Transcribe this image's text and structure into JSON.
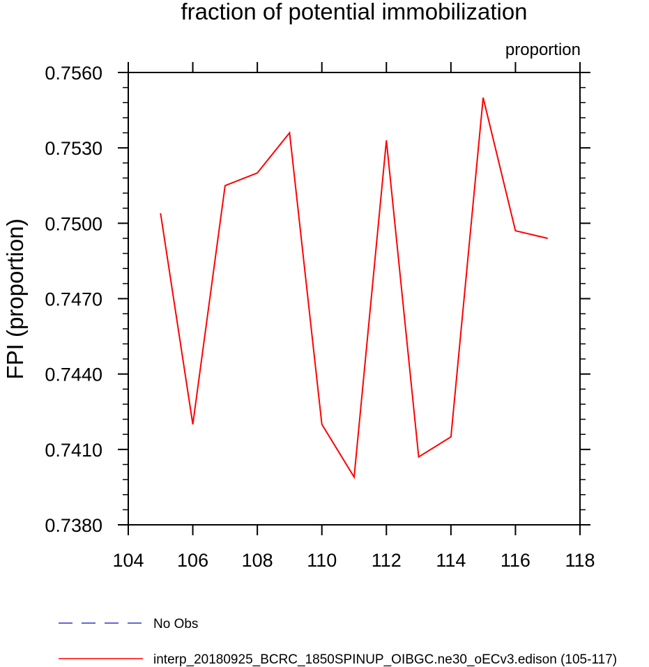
{
  "chart_data": {
    "type": "line",
    "title": "fraction of potential immobilization",
    "units_label": "proportion",
    "ylabel": "FPI  (proportion)",
    "xlabel": "",
    "xlim": [
      104,
      118
    ],
    "ylim": [
      0.738,
      0.756
    ],
    "xticks": [
      104,
      106,
      108,
      110,
      112,
      114,
      116,
      118
    ],
    "xtick_labels": [
      "104",
      "106",
      "108",
      "110",
      "112",
      "114",
      "116",
      "118"
    ],
    "yticks": [
      0.738,
      0.741,
      0.744,
      0.747,
      0.75,
      0.753,
      0.756
    ],
    "ytick_labels": [
      "0.7380",
      "0.7410",
      "0.7440",
      "0.7470",
      "0.7500",
      "0.7530",
      "0.7560"
    ],
    "series": [
      {
        "name": "interp_20180925_BCRC_1850SPINUP_OIBGC.ne30_oECv3.edison (105-117)",
        "color": "#ff0000",
        "x": [
          105,
          106,
          107,
          108,
          109,
          110,
          111,
          112,
          113,
          114,
          115,
          116,
          117
        ],
        "values": [
          0.7504,
          0.742,
          0.7515,
          0.752,
          0.7536,
          0.742,
          0.7399,
          0.7533,
          0.7407,
          0.7415,
          0.755,
          0.7497,
          0.7494
        ]
      }
    ],
    "legend": [
      {
        "label": "No Obs",
        "color": "#3333cc",
        "style": "dashed"
      },
      {
        "label": "interp_20180925_BCRC_1850SPINUP_OIBGC.ne30_oECv3.edison (105-117)",
        "color": "#ff0000",
        "style": "solid"
      }
    ],
    "legend_position": "bottom",
    "grid": false
  }
}
